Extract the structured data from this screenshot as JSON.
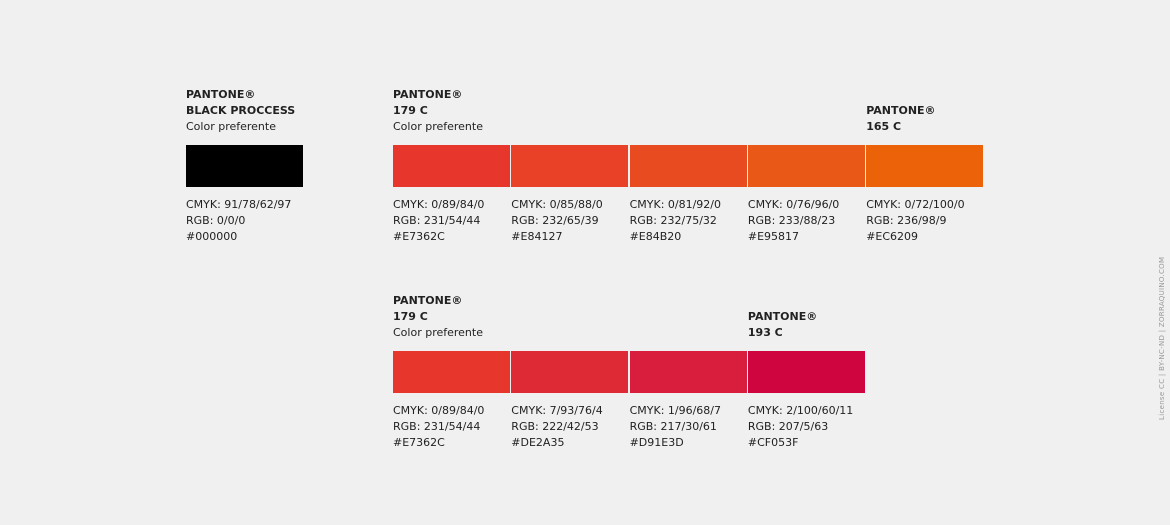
{
  "palettes": [
    {
      "swatches": [
        {
          "label": {
            "brand": "PANTONE®",
            "name": "BLACK PROCCESS",
            "note": "Color preferente"
          },
          "cmyk": "CMYK: 91/78/62/97",
          "rgb": "RGB: 0/0/0",
          "hex": "#000000"
        }
      ]
    },
    {
      "swatches": [
        {
          "label": {
            "brand": "PANTONE®",
            "name": "179 C",
            "note": "Color preferente"
          },
          "cmyk": "CMYK: 0/89/84/0",
          "rgb": "RGB: 231/54/44",
          "hex": "#E7362C"
        },
        {
          "cmyk": "CMYK: 0/85/88/0",
          "rgb": "RGB: 232/65/39",
          "hex": "#E84127"
        },
        {
          "cmyk": "CMYK: 0/81/92/0",
          "rgb": "RGB: 232/75/32",
          "hex": "#E84B20"
        },
        {
          "cmyk": "CMYK: 0/76/96/0",
          "rgb": "RGB: 233/88/23",
          "hex": "#E95817"
        },
        {
          "label": {
            "brand": "PANTONE®",
            "name": "165 C"
          },
          "cmyk": "CMYK: 0/72/100/0",
          "rgb": "RGB: 236/98/9",
          "hex": "#EC6209"
        }
      ]
    },
    {
      "swatches": [
        {
          "label": {
            "brand": "PANTONE®",
            "name": "179 C",
            "note": "Color preferente"
          },
          "cmyk": "CMYK: 0/89/84/0",
          "rgb": "RGB: 231/54/44",
          "hex": "#E7362C"
        },
        {
          "cmyk": "CMYK: 7/93/76/4",
          "rgb": "RGB: 222/42/53",
          "hex": "#DE2A35"
        },
        {
          "cmyk": "CMYK: 1/96/68/7",
          "rgb": "RGB: 217/30/61",
          "hex": "#D91E3D"
        },
        {
          "label": {
            "brand": "PANTONE®",
            "name": "193 C"
          },
          "cmyk": "CMYK: 2/100/60/11",
          "rgb": "RGB: 207/5/63",
          "hex": "#CF053F"
        }
      ]
    }
  ],
  "license": "License CC | BY-NC-ND | ZORRAQUINO.COM"
}
